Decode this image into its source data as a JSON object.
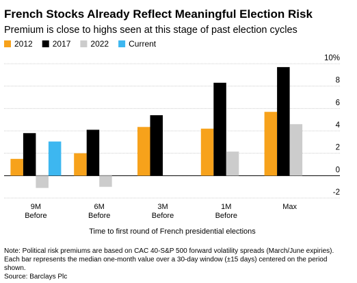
{
  "chart_data": {
    "type": "bar",
    "title": "French Stocks Already Reflect Meaningful Election Risk",
    "subtitle": "Premium is close to highs seen at this stage of past election cycles",
    "x_label": "Time to first round of French presidential elections",
    "categories": [
      "9M\nBefore",
      "6M\nBefore",
      "3M\nBefore",
      "1M\nBefore",
      "Max"
    ],
    "series": [
      {
        "name": "2012",
        "color": "#f7a21b",
        "values": [
          1.5,
          2.0,
          4.35,
          4.2,
          5.7
        ]
      },
      {
        "name": "2017",
        "color": "#000000",
        "values": [
          3.8,
          4.1,
          5.4,
          8.3,
          9.7
        ]
      },
      {
        "name": "2022",
        "color": "#cccccc",
        "values": [
          -1.1,
          -1.0,
          null,
          2.15,
          4.6
        ]
      },
      {
        "name": "Current",
        "color": "#3db7f0",
        "values": [
          3.05,
          null,
          null,
          null,
          null
        ]
      }
    ],
    "ylim": [
      -2,
      10
    ],
    "yticks": [
      -2,
      0,
      2,
      4,
      6,
      8,
      {
        "value": 10,
        "label": "10%"
      }
    ],
    "grid": true,
    "notes": [
      "Note: Political risk premiums are based on CAC 40-S&P 500 forward volatility spreads (March/June expiries).",
      "Each bar represents the median one-month value over a 30-day window (±15 days) centered on the period",
      "shown.",
      "Source: Barclays Plc"
    ]
  }
}
